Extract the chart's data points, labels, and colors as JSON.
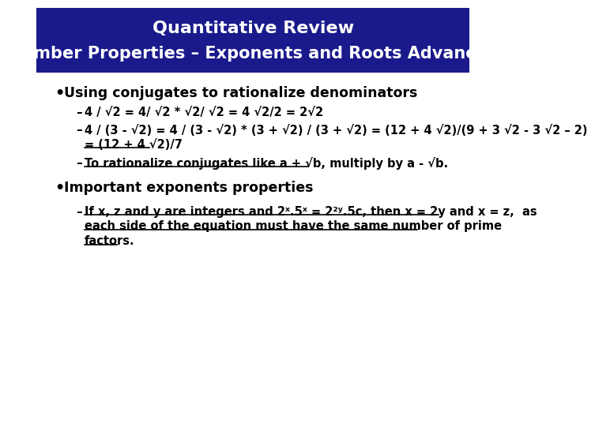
{
  "title_line1": "Quantitative Review",
  "title_line2": "Number Properties – Exponents and Roots Advanced",
  "header_bg": "#1a1a8c",
  "header_text_color": "#ffffff",
  "body_bg": "#ffffff",
  "body_text_color": "#000000",
  "bullet1": "Using conjugates to rationalize denominators",
  "sub1a": "4 / √2 = 4/ √2 * √2/ √2 = 4 √2/2 = 2√2",
  "sub1b": "4 / (3 - √2) = 4 / (3 - √2) * (3 + √2) / (3 + √2) = (12 + 4 √2)/(9 + 3 √2 - 3 √2 – 2)",
  "sub1b2": "= (12 + 4 √2)/7",
  "sub1c": "To rationalize conjugates like a + √b, multiply by a - √b.",
  "bullet2": "Important exponents properties",
  "sub2a_line1": "If x, z and y are integers and 2ˣ.5ˣ = 2²ʸ.5ᴄ, then x = 2y and x = z,  as",
  "sub2a_line2": "each side of the equation must have the same number of prime",
  "sub2a_line3": "factors."
}
